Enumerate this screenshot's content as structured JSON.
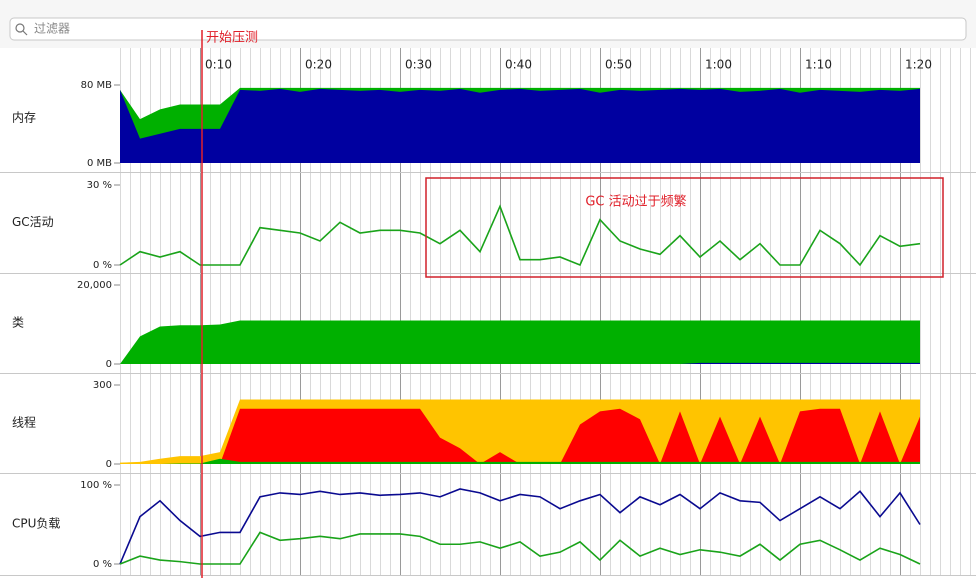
{
  "filter_placeholder": "过滤器",
  "start_label": "开始压测",
  "callout_label": "GC 活动过于频繁",
  "time_axis": {
    "xlim": [
      2,
      87.6
    ],
    "xticks": [
      {
        "value": 10,
        "label": "0:10"
      },
      {
        "value": 20,
        "label": "0:20"
      },
      {
        "value": 30,
        "label": "0:30"
      },
      {
        "value": 40,
        "label": "0:40"
      },
      {
        "value": 50,
        "label": "0:50"
      },
      {
        "value": 60,
        "label": "1:00"
      },
      {
        "value": 70,
        "label": "1:10"
      },
      {
        "value": 80,
        "label": "1:20"
      }
    ]
  },
  "x": [
    2,
    4,
    6,
    8,
    10,
    12,
    14,
    16,
    18,
    20,
    22,
    24,
    26,
    28,
    30,
    32,
    34,
    36,
    38,
    40,
    42,
    44,
    46,
    48,
    50,
    52,
    54,
    56,
    58,
    60,
    62,
    64,
    66,
    68,
    70,
    72,
    74,
    76,
    78,
    80,
    82
  ],
  "panels": [
    {
      "label": "内存",
      "ylim": [
        0,
        80
      ],
      "yticks": [
        {
          "value": 0,
          "label": "0 MB"
        },
        {
          "value": 80,
          "label": "80 MB"
        }
      ],
      "series": [
        {
          "type": "area",
          "color": "#00b000",
          "values": [
            75,
            45,
            55,
            60,
            60,
            60,
            77,
            77,
            77,
            77,
            77,
            77,
            77,
            77,
            77,
            77,
            77,
            77,
            77,
            77,
            77,
            77,
            77,
            77,
            77,
            77,
            77,
            77,
            77,
            77,
            77,
            77,
            77,
            77,
            77,
            77,
            77,
            77,
            77,
            77,
            77
          ]
        },
        {
          "type": "area",
          "color": "#0000a0",
          "values": [
            75,
            25,
            30,
            35,
            35,
            35,
            75,
            74,
            76,
            73,
            76,
            75,
            74,
            75,
            73,
            75,
            74,
            76,
            72,
            75,
            76,
            74,
            75,
            76,
            72,
            75,
            74,
            75,
            76,
            75,
            76,
            73,
            74,
            76,
            72,
            75,
            74,
            73,
            75,
            74,
            76
          ]
        }
      ]
    },
    {
      "label": "GC活动",
      "ylim": [
        0,
        30
      ],
      "yticks": [
        {
          "value": 0,
          "label": "0 %"
        },
        {
          "value": 30,
          "label": "30 %"
        }
      ],
      "series": [
        {
          "type": "line",
          "color": "#1aa31a",
          "values": [
            0,
            5,
            3,
            5,
            0,
            0,
            0,
            14,
            13,
            12,
            9,
            16,
            12,
            13,
            13,
            12,
            8,
            13,
            5,
            22,
            2,
            2,
            3,
            0,
            17,
            9,
            6,
            4,
            11,
            3,
            9,
            2,
            8,
            0,
            0,
            13,
            8,
            0,
            11,
            7,
            8
          ]
        }
      ]
    },
    {
      "label": "类",
      "ylim": [
        0,
        20000
      ],
      "yticks": [
        0,
        {
          "value": 20000,
          "label": "20,000"
        }
      ],
      "series": [
        {
          "type": "area",
          "color": "#00b000",
          "values": [
            0,
            7000,
            9500,
            9800,
            9800,
            10000,
            11000,
            11000,
            11000,
            11000,
            11000,
            11000,
            11000,
            11000,
            11000,
            11000,
            11000,
            11000,
            11000,
            11000,
            11000,
            11000,
            11000,
            11000,
            11000,
            11000,
            11000,
            11000,
            11000,
            11000,
            11000,
            11000,
            11000,
            11000,
            11000,
            11000,
            11000,
            11000,
            11000,
            11000,
            11000
          ]
        },
        {
          "type": "area",
          "color": "#0000a0",
          "values": [
            0,
            0,
            0,
            0,
            0,
            0,
            0,
            0,
            0,
            0,
            0,
            0,
            0,
            0,
            0,
            0,
            0,
            0,
            0,
            0,
            0,
            0,
            0,
            0,
            0,
            0,
            0,
            0,
            0,
            300,
            300,
            300,
            300,
            300,
            300,
            300,
            300,
            300,
            300,
            300,
            300
          ]
        }
      ]
    },
    {
      "label": "线程",
      "ylim": [
        0,
        300
      ],
      "yticks": [
        0,
        300
      ],
      "series": [
        {
          "type": "area",
          "color": "#ffc400",
          "values": [
            5,
            8,
            20,
            30,
            30,
            45,
            245,
            245,
            245,
            245,
            245,
            245,
            245,
            245,
            245,
            245,
            245,
            245,
            245,
            245,
            245,
            245,
            245,
            245,
            245,
            245,
            245,
            245,
            245,
            245,
            245,
            245,
            245,
            245,
            245,
            245,
            245,
            245,
            245,
            245,
            245
          ]
        },
        {
          "type": "area",
          "color": "#ff0000",
          "values": [
            0,
            0,
            0,
            0,
            0,
            0,
            210,
            210,
            210,
            210,
            210,
            210,
            210,
            210,
            210,
            210,
            100,
            60,
            0,
            45,
            0,
            0,
            0,
            150,
            200,
            210,
            170,
            0,
            200,
            0,
            180,
            0,
            180,
            0,
            200,
            210,
            210,
            0,
            200,
            0,
            180
          ]
        },
        {
          "type": "area",
          "color": "#00b000",
          "values": [
            0,
            0,
            0,
            2,
            2,
            20,
            8,
            8,
            8,
            8,
            8,
            8,
            8,
            8,
            8,
            8,
            8,
            8,
            8,
            8,
            8,
            8,
            8,
            8,
            8,
            8,
            8,
            8,
            8,
            8,
            8,
            8,
            8,
            8,
            8,
            8,
            8,
            8,
            8,
            8,
            8
          ]
        }
      ]
    },
    {
      "label": "CPU负载",
      "ylim": [
        0,
        100
      ],
      "yticks": [
        {
          "value": 0,
          "label": "0 %"
        },
        {
          "value": 100,
          "label": "100 %"
        }
      ],
      "series": [
        {
          "type": "line",
          "color": "#0a0a90",
          "values": [
            0,
            60,
            80,
            55,
            35,
            40,
            40,
            85,
            90,
            88,
            92,
            88,
            90,
            87,
            88,
            90,
            85,
            95,
            90,
            80,
            88,
            85,
            70,
            80,
            88,
            65,
            85,
            75,
            88,
            70,
            90,
            80,
            78,
            55,
            70,
            85,
            70,
            92,
            60,
            90,
            50
          ]
        },
        {
          "type": "line",
          "color": "#1aa31a",
          "values": [
            0,
            10,
            5,
            3,
            0,
            0,
            0,
            40,
            30,
            32,
            35,
            32,
            38,
            38,
            38,
            35,
            25,
            25,
            28,
            20,
            28,
            10,
            15,
            28,
            5,
            30,
            10,
            20,
            12,
            18,
            15,
            10,
            25,
            5,
            25,
            30,
            18,
            5,
            20,
            12,
            0
          ]
        }
      ]
    }
  ]
}
